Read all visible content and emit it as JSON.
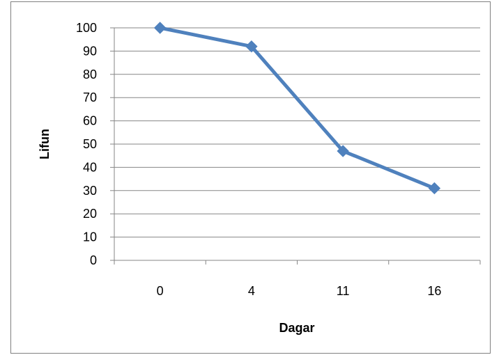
{
  "chart_data": {
    "type": "line",
    "categories": [
      "0",
      "4",
      "11",
      "16"
    ],
    "series": [
      {
        "values": [
          100,
          92,
          47,
          31
        ],
        "color": "#4f81bd",
        "marker": "diamond"
      }
    ],
    "xlabel": "Dagar",
    "ylabel": "Lifun",
    "ylim": [
      0,
      100
    ],
    "yticks": [
      0,
      10,
      20,
      30,
      40,
      50,
      60,
      70,
      80,
      90,
      100
    ],
    "grid": true,
    "legend": "none"
  }
}
